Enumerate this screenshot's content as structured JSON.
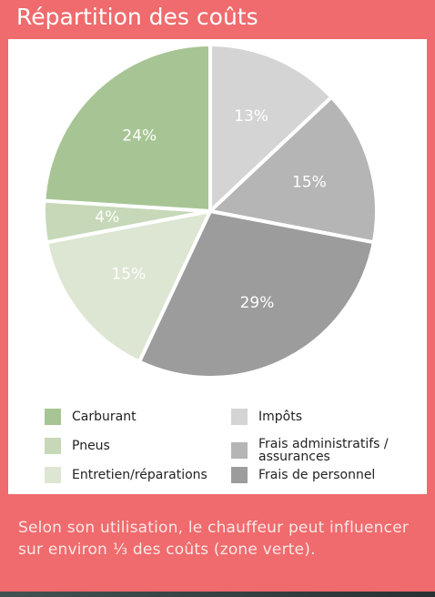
{
  "chart_data": {
    "type": "pie",
    "title": "Répartition des coûts",
    "categories": [
      "Impôts",
      "Frais administratifs / assurances",
      "Frais de personnel",
      "Entretien/réparations",
      "Pneus",
      "Carburant"
    ],
    "values": [
      13,
      15,
      29,
      15,
      4,
      24
    ],
    "value_labels": [
      "13%",
      "15%",
      "29%",
      "15%",
      "4%",
      "24%"
    ],
    "colors": [
      "#d4d4d4",
      "#b5b5b5",
      "#9c9c9c",
      "#dde6d2",
      "#c6d8b8",
      "#a7c594"
    ],
    "note": "Selon son utilisation, le chauffeur peut influencer sur environ ⅓ des coûts (zone verte)."
  }
}
